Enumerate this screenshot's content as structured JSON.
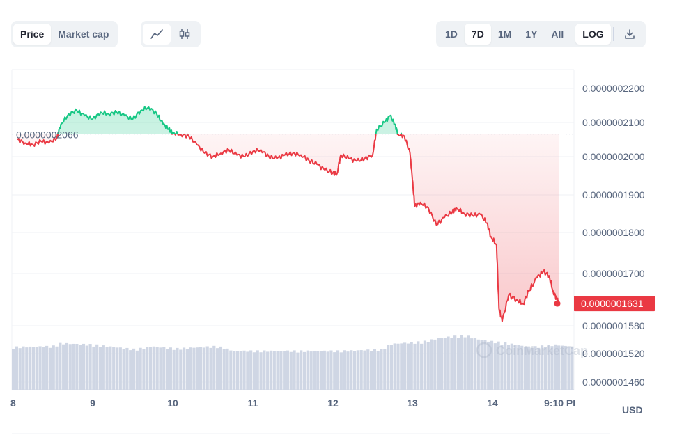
{
  "toolbar": {
    "metric_tabs": [
      "Price",
      "Market cap"
    ],
    "active_metric": "Price",
    "chart_type_icons": [
      "line-chart-icon",
      "candlestick-icon"
    ],
    "ranges": [
      "1D",
      "7D",
      "1M",
      "1Y",
      "All"
    ],
    "active_range": "7D",
    "log_label": "LOG",
    "download_icon": "download-icon"
  },
  "currency_label": "USD",
  "watermark": "CoinMarketCap",
  "colors": {
    "up": "#16c784",
    "down": "#ea3943",
    "volume": "#cfd6e4",
    "grid": "#eff2f5"
  },
  "chart_data": {
    "type": "area",
    "reference_price": 2.066e-07,
    "reference_price_label": "0.0000002066",
    "current_price": 1.631e-07,
    "current_price_label": "0.0000001631",
    "y_scale": "log",
    "y_ticks": [
      {
        "value": 2.2e-07,
        "label": "0.0000002200"
      },
      {
        "value": 2.1e-07,
        "label": "0.0000002100"
      },
      {
        "value": 2e-07,
        "label": "0.0000002000"
      },
      {
        "value": 1.9e-07,
        "label": "0.0000001900"
      },
      {
        "value": 1.8e-07,
        "label": "0.0000001800"
      },
      {
        "value": 1.7e-07,
        "label": "0.0000001700"
      },
      {
        "value": 1.58e-07,
        "label": "0.0000001580"
      },
      {
        "value": 1.52e-07,
        "label": "0.0000001520"
      },
      {
        "value": 1.46e-07,
        "label": "0.0000001460"
      }
    ],
    "x_ticks": [
      "8",
      "9",
      "10",
      "11",
      "12",
      "13",
      "14",
      "9:10 PI"
    ],
    "x_range_days": [
      8,
      14.82
    ],
    "series": [
      {
        "values": [
          [
            8.05,
            2.05e-07
          ],
          [
            8.15,
            2.04e-07
          ],
          [
            8.25,
            2.035e-07
          ],
          [
            8.35,
            2.045e-07
          ],
          [
            8.45,
            2.04e-07
          ],
          [
            8.55,
            2.055e-07
          ],
          [
            8.6,
            2.095e-07
          ],
          [
            8.7,
            2.125e-07
          ],
          [
            8.8,
            2.135e-07
          ],
          [
            8.9,
            2.12e-07
          ],
          [
            9.0,
            2.11e-07
          ],
          [
            9.1,
            2.13e-07
          ],
          [
            9.2,
            2.125e-07
          ],
          [
            9.3,
            2.13e-07
          ],
          [
            9.4,
            2.12e-07
          ],
          [
            9.5,
            2.11e-07
          ],
          [
            9.6,
            2.135e-07
          ],
          [
            9.7,
            2.145e-07
          ],
          [
            9.8,
            2.125e-07
          ],
          [
            9.88,
            2.095e-07
          ],
          [
            9.95,
            2.08e-07
          ],
          [
            10.0,
            2.07e-07
          ],
          [
            10.1,
            2.065e-07
          ],
          [
            10.2,
            2.06e-07
          ],
          [
            10.3,
            2.035e-07
          ],
          [
            10.4,
            2.01e-07
          ],
          [
            10.5,
            2e-07
          ],
          [
            10.6,
            2.01e-07
          ],
          [
            10.7,
            2.02e-07
          ],
          [
            10.8,
            2.005e-07
          ],
          [
            10.9,
            2e-07
          ],
          [
            11.0,
            2.015e-07
          ],
          [
            11.1,
            2.02e-07
          ],
          [
            11.2,
            2e-07
          ],
          [
            11.3,
            1.995e-07
          ],
          [
            11.4,
            2.005e-07
          ],
          [
            11.5,
            2.01e-07
          ],
          [
            11.6,
            2.005e-07
          ],
          [
            11.7,
            1.99e-07
          ],
          [
            11.8,
            1.98e-07
          ],
          [
            11.9,
            1.965e-07
          ],
          [
            12.0,
            1.958e-07
          ],
          [
            12.05,
            1.955e-07
          ],
          [
            12.1,
            2.005e-07
          ],
          [
            12.2,
            1.995e-07
          ],
          [
            12.3,
            1.988e-07
          ],
          [
            12.4,
            1.995e-07
          ],
          [
            12.5,
            2.005e-07
          ],
          [
            12.55,
            2.08e-07
          ],
          [
            12.65,
            2.1e-07
          ],
          [
            12.72,
            2.12e-07
          ],
          [
            12.78,
            2.095e-07
          ],
          [
            12.82,
            2.065e-07
          ],
          [
            12.9,
            2.06e-07
          ],
          [
            12.97,
            2.01e-07
          ],
          [
            13.0,
            1.94e-07
          ],
          [
            13.03,
            1.87e-07
          ],
          [
            13.1,
            1.88e-07
          ],
          [
            13.2,
            1.865e-07
          ],
          [
            13.3,
            1.82e-07
          ],
          [
            13.4,
            1.84e-07
          ],
          [
            13.5,
            1.855e-07
          ],
          [
            13.55,
            1.865e-07
          ],
          [
            13.65,
            1.85e-07
          ],
          [
            13.75,
            1.845e-07
          ],
          [
            13.85,
            1.848e-07
          ],
          [
            13.93,
            1.825e-07
          ],
          [
            13.98,
            1.79e-07
          ],
          [
            14.05,
            1.77e-07
          ],
          [
            14.08,
            1.62e-07
          ],
          [
            14.12,
            1.59e-07
          ],
          [
            14.2,
            1.65e-07
          ],
          [
            14.3,
            1.64e-07
          ],
          [
            14.38,
            1.63e-07
          ],
          [
            14.45,
            1.66e-07
          ],
          [
            14.55,
            1.69e-07
          ],
          [
            14.63,
            1.705e-07
          ],
          [
            14.7,
            1.695e-07
          ],
          [
            14.75,
            1.66e-07
          ],
          [
            14.8,
            1.64e-07
          ],
          [
            14.82,
            1.631e-07
          ]
        ]
      }
    ],
    "volume": [
      [
        8.0,
        0.55
      ],
      [
        8.5,
        0.56
      ],
      [
        8.6,
        0.6
      ],
      [
        9.0,
        0.58
      ],
      [
        9.5,
        0.52
      ],
      [
        9.7,
        0.56
      ],
      [
        10.0,
        0.53
      ],
      [
        10.3,
        0.55
      ],
      [
        10.5,
        0.56
      ],
      [
        10.7,
        0.5
      ],
      [
        11.0,
        0.5
      ],
      [
        11.5,
        0.5
      ],
      [
        12.0,
        0.5
      ],
      [
        12.5,
        0.52
      ],
      [
        12.6,
        0.59
      ],
      [
        13.0,
        0.62
      ],
      [
        13.2,
        0.67
      ],
      [
        13.5,
        0.7
      ],
      [
        13.7,
        0.64
      ],
      [
        14.0,
        0.6
      ],
      [
        14.3,
        0.55
      ],
      [
        14.6,
        0.58
      ],
      [
        14.82,
        0.55
      ]
    ]
  }
}
